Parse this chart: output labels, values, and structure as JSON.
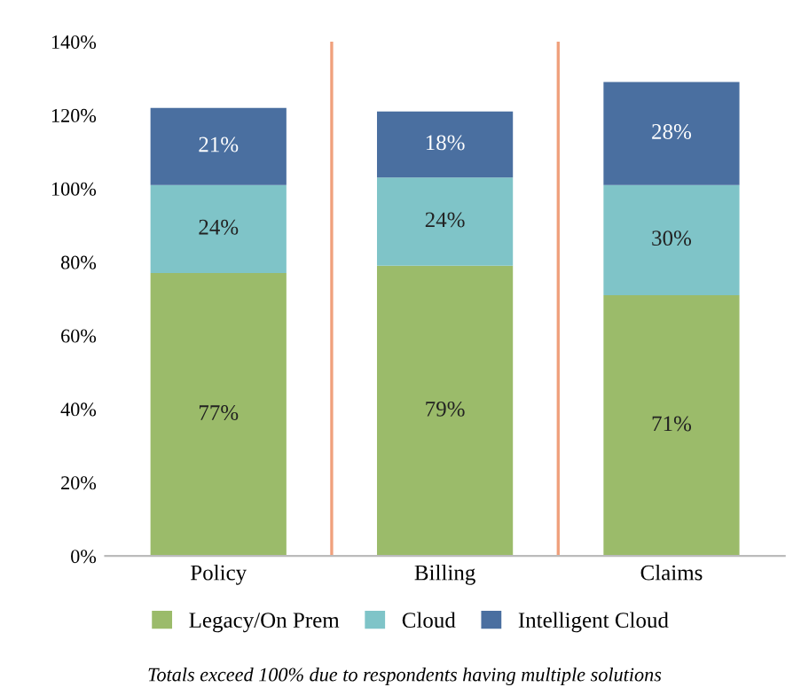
{
  "chart_data": {
    "type": "bar",
    "stacked": true,
    "categories": [
      "Policy",
      "Billing",
      "Claims"
    ],
    "series": [
      {
        "name": "Legacy/On Prem",
        "color": "#9bbb6a",
        "values": [
          77,
          79,
          71
        ],
        "value_labels": [
          "77%",
          "79%",
          "71%"
        ]
      },
      {
        "name": "Cloud",
        "color": "#7fc4c8",
        "values": [
          24,
          24,
          30
        ],
        "value_labels": [
          "24%",
          "24%",
          "30%"
        ]
      },
      {
        "name": "Intelligent Cloud",
        "color": "#4a6fa0",
        "values": [
          21,
          18,
          28
        ],
        "value_labels": [
          "21%",
          "18%",
          "28%"
        ]
      }
    ],
    "ylim": [
      0,
      140
    ],
    "yticks": [
      {
        "value": 0,
        "label": "0%"
      },
      {
        "value": 20,
        "label": "20%"
      },
      {
        "value": 40,
        "label": "40%"
      },
      {
        "value": 60,
        "label": "60%"
      },
      {
        "value": 80,
        "label": "80%"
      },
      {
        "value": 100,
        "label": "100%"
      },
      {
        "value": 120,
        "label": "120%"
      },
      {
        "value": 140,
        "label": "140%"
      }
    ],
    "grid": false,
    "legend": "bottom",
    "annotations": [
      "Totals exceed 100% due to respondents having multiple solutions"
    ]
  }
}
